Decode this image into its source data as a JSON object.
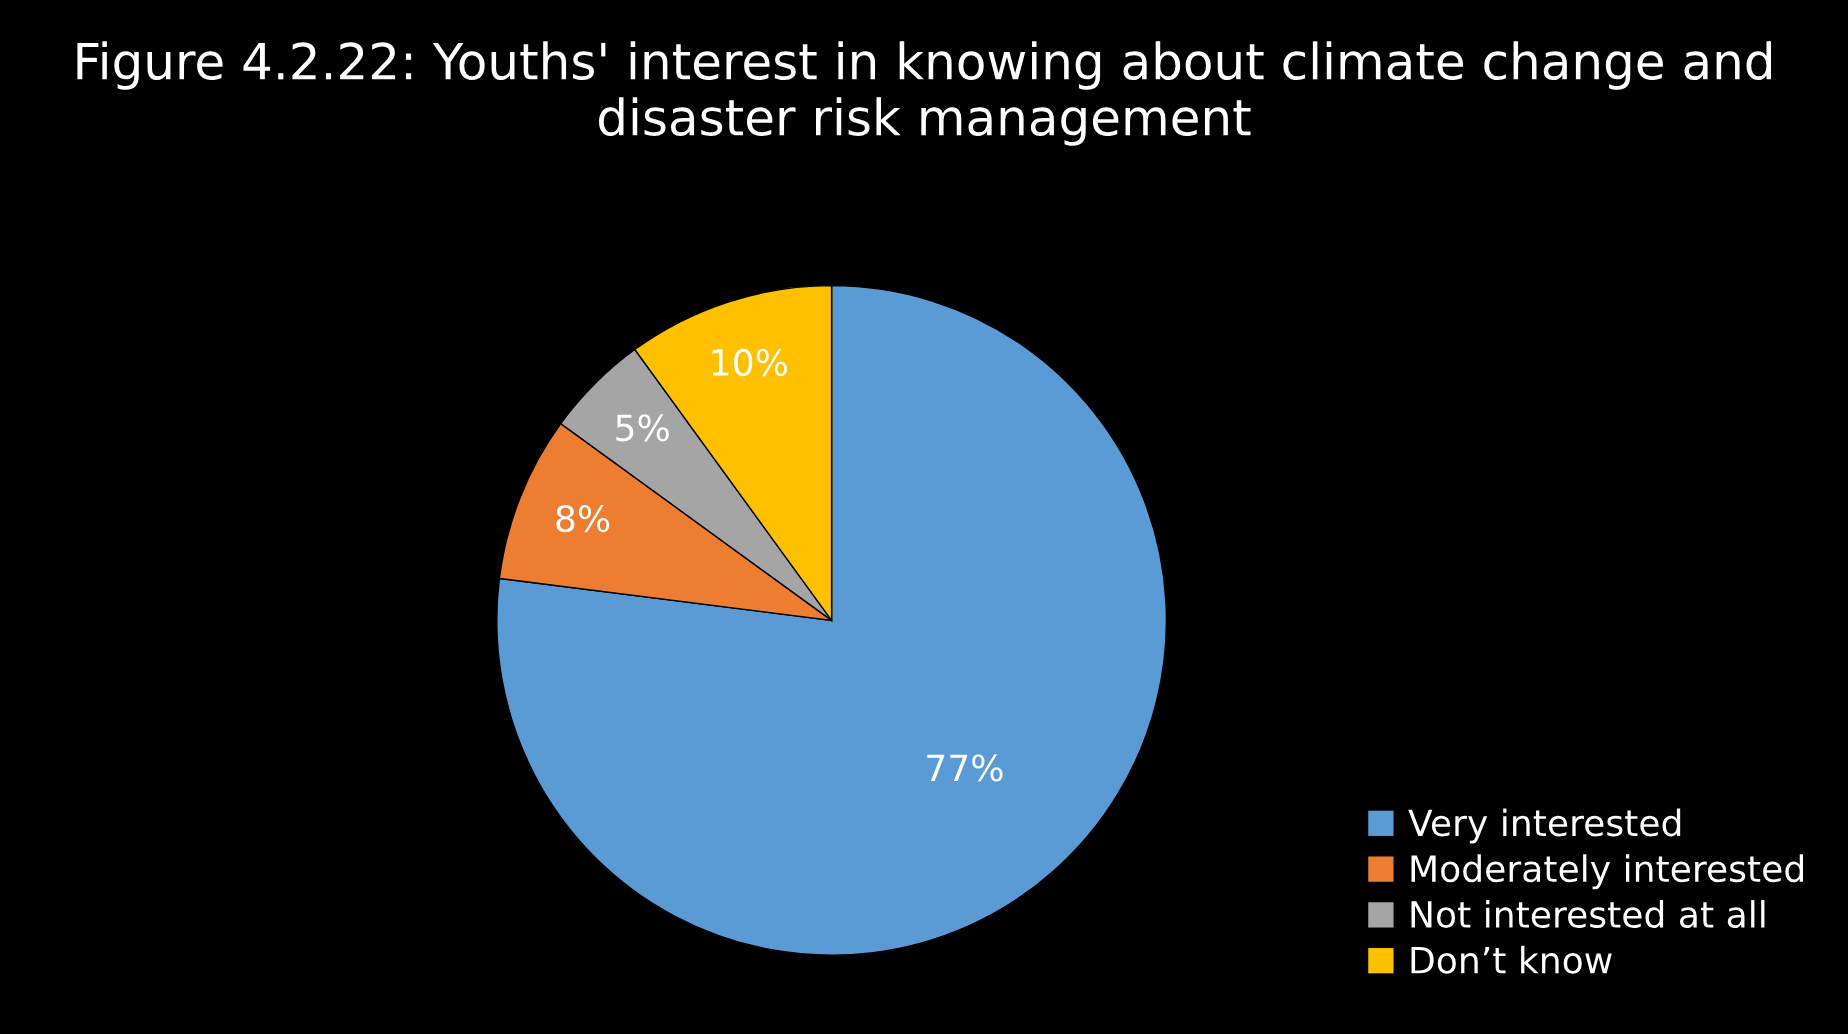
{
  "chart_data": {
    "type": "pie",
    "title": "Figure 4.2.22: Youths' interest in knowing about climate change and disaster risk management",
    "categories": [
      "Very interested",
      "Moderately interested",
      "Not interested at all",
      "Don’t know"
    ],
    "values": [
      77,
      8,
      5,
      10
    ],
    "colors": [
      "#5b9bd5",
      "#ed7d31",
      "#a5a5a5",
      "#ffc000"
    ],
    "value_labels": [
      "77%",
      "8%",
      "5%",
      "10%"
    ],
    "legend": "bottom right"
  }
}
